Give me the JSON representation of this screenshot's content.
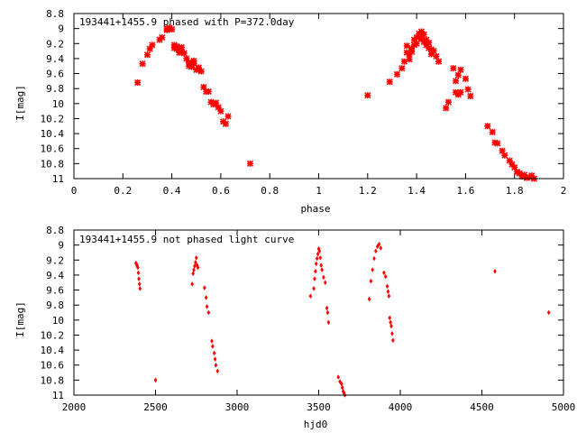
{
  "colors": {
    "points": "#ff0000",
    "axes": "#000000",
    "background": "#ffffff"
  },
  "chart_data": [
    {
      "type": "scatter",
      "title": "193441+1455.9 phased with P=372.0day",
      "xlabel": "phase",
      "ylabel": "I[mag]",
      "xlim": [
        0,
        2
      ],
      "ylim": [
        8.8,
        11
      ],
      "y_inverted": true,
      "grid": false,
      "marker": "cross",
      "x_ticks": [
        0,
        0.2,
        0.4,
        0.6,
        0.8,
        1,
        1.2,
        1.4,
        1.6,
        1.8,
        2
      ],
      "x_tick_labels": [
        "0",
        "0.2",
        "0.4",
        "0.6",
        "0.8",
        "1",
        "1.2",
        "1.4",
        "1.6",
        "1.8",
        "2"
      ],
      "y_ticks": [
        8.8,
        9,
        9.2,
        9.4,
        9.6,
        9.8,
        10,
        10.2,
        10.4,
        10.6,
        10.8,
        11
      ],
      "y_tick_labels": [
        "8.8",
        "9",
        "9.2",
        "9.4",
        "9.6",
        "9.8",
        "10",
        "10.2",
        "10.4",
        "10.6",
        "10.8",
        "11"
      ],
      "x": [
        0.26,
        0.28,
        0.3,
        0.31,
        0.32,
        0.35,
        0.36,
        0.38,
        0.38,
        0.39,
        0.4,
        0.41,
        0.41,
        0.42,
        0.42,
        0.43,
        0.43,
        0.44,
        0.44,
        0.45,
        0.46,
        0.47,
        0.47,
        0.48,
        0.49,
        0.49,
        0.5,
        0.51,
        0.52,
        0.53,
        0.54,
        0.55,
        0.56,
        0.57,
        0.58,
        0.59,
        0.6,
        0.61,
        0.62,
        0.63,
        0.72,
        1.2,
        1.29,
        1.32,
        1.34,
        1.35,
        1.36,
        1.36,
        1.37,
        1.37,
        1.38,
        1.38,
        1.39,
        1.39,
        1.4,
        1.4,
        1.41,
        1.41,
        1.42,
        1.42,
        1.43,
        1.43,
        1.44,
        1.44,
        1.45,
        1.45,
        1.46,
        1.46,
        1.47,
        1.48,
        1.49,
        1.52,
        1.53,
        1.55,
        1.56,
        1.56,
        1.57,
        1.57,
        1.58,
        1.58,
        1.6,
        1.61,
        1.62,
        1.69,
        1.71,
        1.72,
        1.73,
        1.75,
        1.76,
        1.78,
        1.79,
        1.8,
        1.81,
        1.82,
        1.83,
        1.84,
        1.85,
        1.86,
        1.87,
        1.88
      ],
      "y": [
        9.72,
        9.47,
        9.35,
        9.27,
        9.22,
        9.15,
        9.12,
        9.0,
        9.02,
        8.99,
        9.01,
        9.26,
        9.22,
        9.27,
        9.24,
        9.28,
        9.32,
        9.31,
        9.25,
        9.33,
        9.4,
        9.45,
        9.5,
        9.51,
        9.43,
        9.47,
        9.55,
        9.52,
        9.57,
        9.78,
        9.84,
        9.84,
        9.98,
        10.01,
        9.99,
        10.05,
        10.1,
        10.24,
        10.27,
        10.17,
        10.8,
        9.89,
        9.71,
        9.61,
        9.53,
        9.44,
        9.32,
        9.23,
        9.41,
        9.35,
        9.31,
        9.27,
        9.22,
        9.15,
        9.2,
        9.12,
        9.07,
        9.1,
        9.04,
        9.14,
        9.18,
        9.08,
        9.22,
        9.15,
        9.26,
        9.19,
        9.34,
        9.28,
        9.3,
        9.37,
        9.44,
        10.06,
        9.98,
        9.53,
        9.7,
        9.85,
        9.88,
        9.62,
        9.85,
        9.55,
        9.67,
        9.81,
        9.9,
        10.3,
        10.38,
        10.52,
        10.53,
        10.63,
        10.69,
        10.76,
        10.81,
        10.85,
        10.91,
        10.93,
        10.97,
        10.95,
        10.99,
        10.98,
        10.96,
        11.0
      ]
    },
    {
      "type": "scatter",
      "title": "193441+1455.9 not phased light curve",
      "xlabel": "hjd0",
      "ylabel": "I[mag]",
      "xlim": [
        2000,
        5000
      ],
      "ylim": [
        8.8,
        11
      ],
      "y_inverted": true,
      "grid": false,
      "marker": "diamond",
      "x_ticks": [
        2000,
        2500,
        3000,
        3500,
        4000,
        4500,
        5000
      ],
      "x_tick_labels": [
        "2000",
        "2500",
        "3000",
        "3500",
        "4000",
        "4500",
        "5000"
      ],
      "y_ticks": [
        8.8,
        9,
        9.2,
        9.4,
        9.6,
        9.8,
        10,
        10.2,
        10.4,
        10.6,
        10.8,
        11
      ],
      "y_tick_labels": [
        "8.8",
        "9",
        "9.2",
        "9.4",
        "9.6",
        "9.8",
        "10",
        "10.2",
        "10.4",
        "10.6",
        "10.8",
        "11"
      ],
      "x": [
        2380,
        2385,
        2388,
        2392,
        2395,
        2398,
        2402,
        2405,
        2500,
        2725,
        2730,
        2735,
        2740,
        2745,
        2750,
        2755,
        2760,
        2800,
        2810,
        2815,
        2825,
        2845,
        2850,
        2860,
        2865,
        2870,
        2880,
        3450,
        3470,
        3475,
        3480,
        3485,
        3490,
        3495,
        3500,
        3505,
        3510,
        3515,
        3520,
        3530,
        3540,
        3550,
        3555,
        3560,
        3620,
        3630,
        3640,
        3645,
        3650,
        3655,
        3660,
        3810,
        3820,
        3830,
        3840,
        3850,
        3860,
        3870,
        3880,
        3900,
        3910,
        3920,
        3925,
        3930,
        3935,
        3940,
        3945,
        3950,
        3955,
        4580,
        4910
      ],
      "y": [
        9.24,
        9.26,
        9.28,
        9.3,
        9.37,
        9.45,
        9.52,
        9.58,
        10.8,
        9.52,
        9.38,
        9.33,
        9.28,
        9.23,
        9.17,
        9.27,
        9.3,
        9.57,
        9.7,
        9.82,
        9.9,
        10.28,
        10.35,
        10.44,
        10.52,
        10.6,
        10.68,
        9.68,
        9.58,
        9.45,
        9.35,
        9.25,
        9.18,
        9.12,
        9.05,
        9.08,
        9.17,
        9.27,
        9.33,
        9.43,
        9.5,
        9.84,
        9.9,
        10.03,
        10.76,
        10.82,
        10.85,
        10.9,
        10.95,
        10.97,
        11.0,
        9.72,
        9.48,
        9.33,
        9.18,
        9.08,
        9.02,
        8.99,
        9.04,
        9.37,
        9.42,
        9.55,
        9.62,
        9.68,
        9.97,
        10.03,
        10.08,
        10.18,
        10.27,
        9.35,
        9.9
      ]
    }
  ]
}
